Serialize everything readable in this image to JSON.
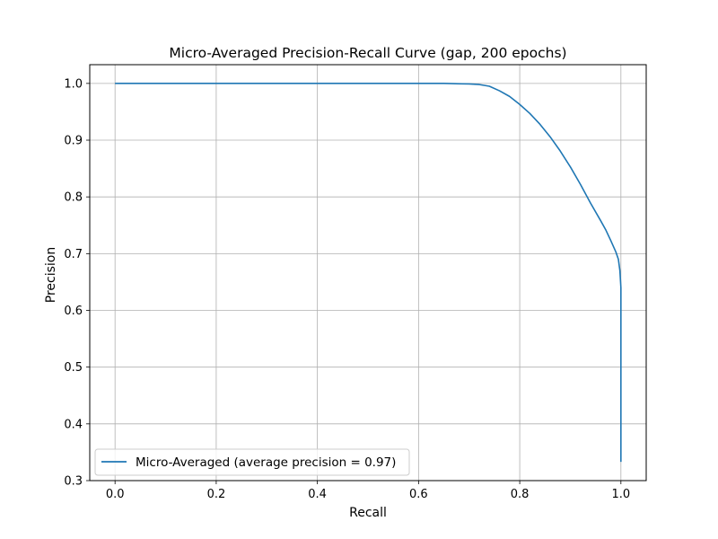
{
  "chart_data": {
    "type": "line",
    "title": "Micro-Averaged Precision-Recall Curve (gap, 200 epochs)",
    "xlabel": "Recall",
    "ylabel": "Precision",
    "xlim": [
      -0.05,
      1.05
    ],
    "ylim": [
      0.3,
      1.033
    ],
    "xticks": [
      0.0,
      0.2,
      0.4,
      0.6,
      0.8,
      1.0
    ],
    "xtick_labels": [
      "0.0",
      "0.2",
      "0.4",
      "0.6",
      "0.8",
      "1.0"
    ],
    "yticks": [
      0.3,
      0.4,
      0.5,
      0.6,
      0.7,
      0.8,
      0.9,
      1.0
    ],
    "ytick_labels": [
      "0.3",
      "0.4",
      "0.5",
      "0.6",
      "0.7",
      "0.8",
      "0.9",
      "1.0"
    ],
    "grid": true,
    "legend_position": "lower-left",
    "colors": {
      "series": "#1f77b4",
      "grid": "#b0b0b0",
      "axis": "#000000"
    },
    "series": [
      {
        "name": "Micro-Averaged (average precision = 0.97)",
        "x": [
          0.0,
          0.1,
          0.2,
          0.3,
          0.4,
          0.5,
          0.6,
          0.65,
          0.7,
          0.72,
          0.74,
          0.76,
          0.78,
          0.8,
          0.82,
          0.84,
          0.86,
          0.88,
          0.9,
          0.92,
          0.94,
          0.96,
          0.97,
          0.98,
          0.99,
          0.995,
          0.998,
          1.0,
          1.0,
          1.0,
          1.0
        ],
        "y": [
          1.0,
          1.0,
          1.0,
          1.0,
          1.0,
          1.0,
          1.0,
          1.0,
          0.999,
          0.998,
          0.995,
          0.987,
          0.977,
          0.963,
          0.947,
          0.928,
          0.906,
          0.881,
          0.853,
          0.822,
          0.789,
          0.758,
          0.742,
          0.723,
          0.703,
          0.69,
          0.67,
          0.64,
          0.5,
          0.4,
          0.333
        ]
      }
    ]
  }
}
